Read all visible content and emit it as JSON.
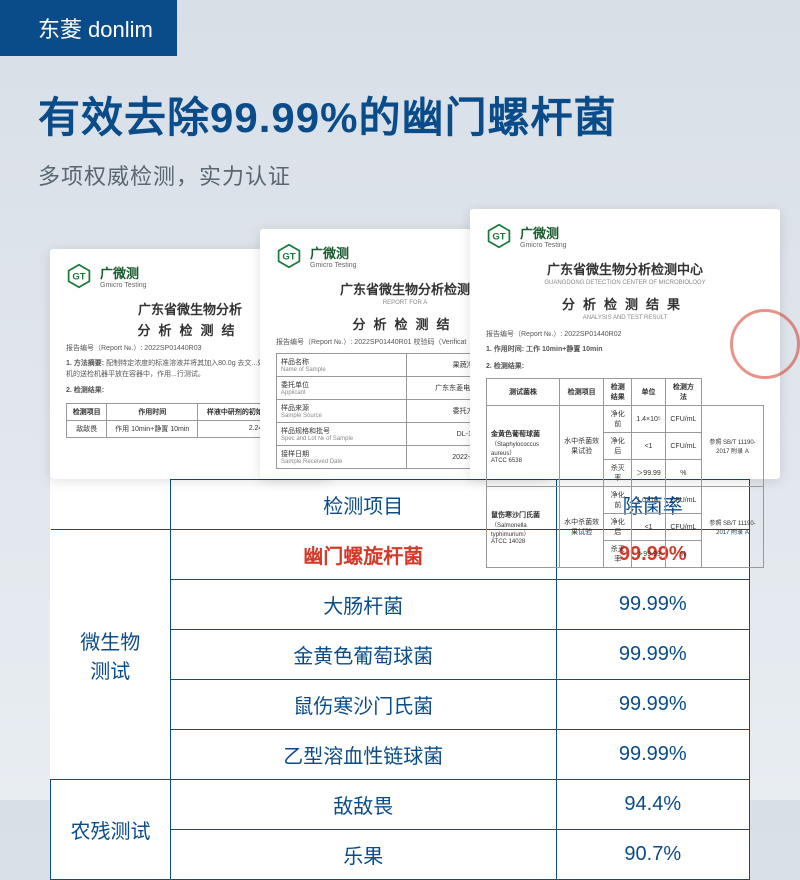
{
  "brand": {
    "cn": "东菱",
    "en": "donlim"
  },
  "headline": "有效去除99.99%的幽门螺杆菌",
  "subtitle": "多项权威检测，实力认证",
  "lab": {
    "name": "广微测",
    "en": "Gmicro Testing",
    "logo_color": "#1a7a3a"
  },
  "cert1": {
    "title": "广东省微生物分析",
    "sub": "分析检测结",
    "report_no": "报告编号（Report №.）: 2022SP01440R03",
    "note_head": "1. 方法摘要:",
    "note": "配制特定浓度的标准溶液并将其加入80.0g 去文...处夹夹里。把已开机的送检机器平放在容器中，作用...行测试。",
    "note2": "2. 检测结果:",
    "tbl": {
      "h": [
        "检测项目",
        "作用时间",
        "样液中研剂的初始浓度 (mg/kg)"
      ],
      "r": [
        "敌敌畏",
        "作用 10min+静置 10min",
        "2.24"
      ]
    }
  },
  "cert2": {
    "title": "广东省微生物分析检测",
    "sub": "分析检测结",
    "report_no": "报告编号（Report №.）: 2022SP01440R01  校验码（Verificat",
    "rows": [
      [
        "样品名称",
        "Name of Sample",
        "果蔬净化器"
      ],
      [
        "委托单位",
        "Applicant",
        "广东东菱电器有限公司"
      ],
      [
        "样品来源",
        "Sample Source",
        "委托方送检"
      ],
      [
        "样品规格和批号",
        "Spec and Lot № of Sample",
        "DL-1271"
      ],
      [
        "接样日期",
        "Sample Received Date",
        "2022-02-16"
      ]
    ]
  },
  "cert3": {
    "title": "广东省微生物分析检测中心",
    "en": "GUANGDONG DETECTION CENTER OF MICROBIOLOGY",
    "sub": "分析检测结果",
    "sub_en": "ANALYSIS AND TEST RESULT",
    "report_no": "报告编号（Report №.）: 2022SP01440R02",
    "work": "1. 作用时间: 工作 10min+静置 10min",
    "res": "2. 检测结果:",
    "h": [
      "测试菌株",
      "检测项目",
      "检测结果",
      "单位",
      "检测方法"
    ],
    "rows": [
      {
        "name": "金黄色葡萄球菌",
        "en": "（Staphylococcus aureus）",
        "code": "ATCC 6538",
        "m": "水中杀菌效果试验",
        "v": [
          [
            "净化前",
            "1.4×10⁵",
            "CFU/mL"
          ],
          [
            "净化后",
            "<1",
            "CFU/mL"
          ],
          [
            "杀灭率",
            "＞99.99",
            "%"
          ]
        ],
        "ref": "参照 SB/T 11190-2017 附录 A"
      },
      {
        "name": "鼠伤寒沙门氏菌",
        "en": "（Salmonella typhimurium）",
        "code": "ATCC 14028",
        "m": "水中杀菌效果试验",
        "v": [
          [
            "净化前",
            "1.0×10⁵",
            "CFU/mL"
          ],
          [
            "净化后",
            "<1",
            "CFU/mL"
          ],
          [
            "杀灭率",
            "＞99.99",
            "%"
          ]
        ],
        "ref": "参照 SB/T 11190-2017 附录 A"
      }
    ]
  },
  "main_table": {
    "headers": [
      "",
      "检测项目",
      "除菌率"
    ],
    "groups": [
      {
        "cat": "微生物测试",
        "rows": [
          {
            "item": "幽门螺旋杆菌",
            "rate": "99.99%",
            "hl": true
          },
          {
            "item": "大肠杆菌",
            "rate": "99.99%"
          },
          {
            "item": "金黄色葡萄球菌",
            "rate": "99.99%"
          },
          {
            "item": "鼠伤寒沙门氏菌",
            "rate": "99.99%"
          },
          {
            "item": "乙型溶血性链球菌",
            "rate": "99.99%"
          }
        ]
      },
      {
        "cat": "农残测试",
        "rows": [
          {
            "item": "敌敌畏",
            "rate": "94.4%"
          },
          {
            "item": "乐果",
            "rate": "90.7%"
          }
        ]
      }
    ]
  },
  "colors": {
    "brand": "#0a4c8a",
    "hl": "#d43a2a",
    "bg_top": "#d8dfe6"
  }
}
